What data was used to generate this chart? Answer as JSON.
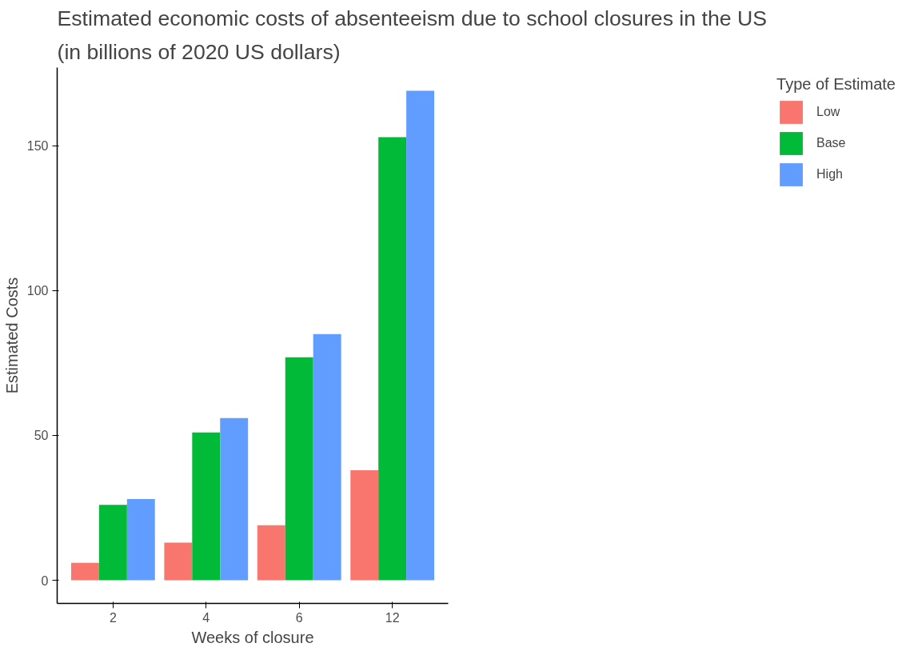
{
  "chart_data": {
    "type": "bar",
    "title": "Estimated economic costs of absenteeism due to school closures in the US",
    "subtitle": " (in billions of 2020 US dollars)",
    "xlabel": "Weeks of closure",
    "ylabel": "Estimated Costs",
    "legend_title": "Type of Estimate",
    "categories": [
      "2",
      "4",
      "6",
      "12"
    ],
    "series": [
      {
        "name": "Low",
        "color": "#f8766d",
        "values": [
          6,
          13,
          19,
          38
        ]
      },
      {
        "name": "Base",
        "color": "#00ba38",
        "values": [
          26,
          51,
          77,
          153
        ]
      },
      {
        "name": "High",
        "color": "#619cff",
        "values": [
          28,
          56,
          85,
          169
        ]
      }
    ],
    "ylim": [
      -8,
      177
    ],
    "yticks": [
      0,
      50,
      100,
      150
    ],
    "grid": false,
    "legend": "right"
  }
}
